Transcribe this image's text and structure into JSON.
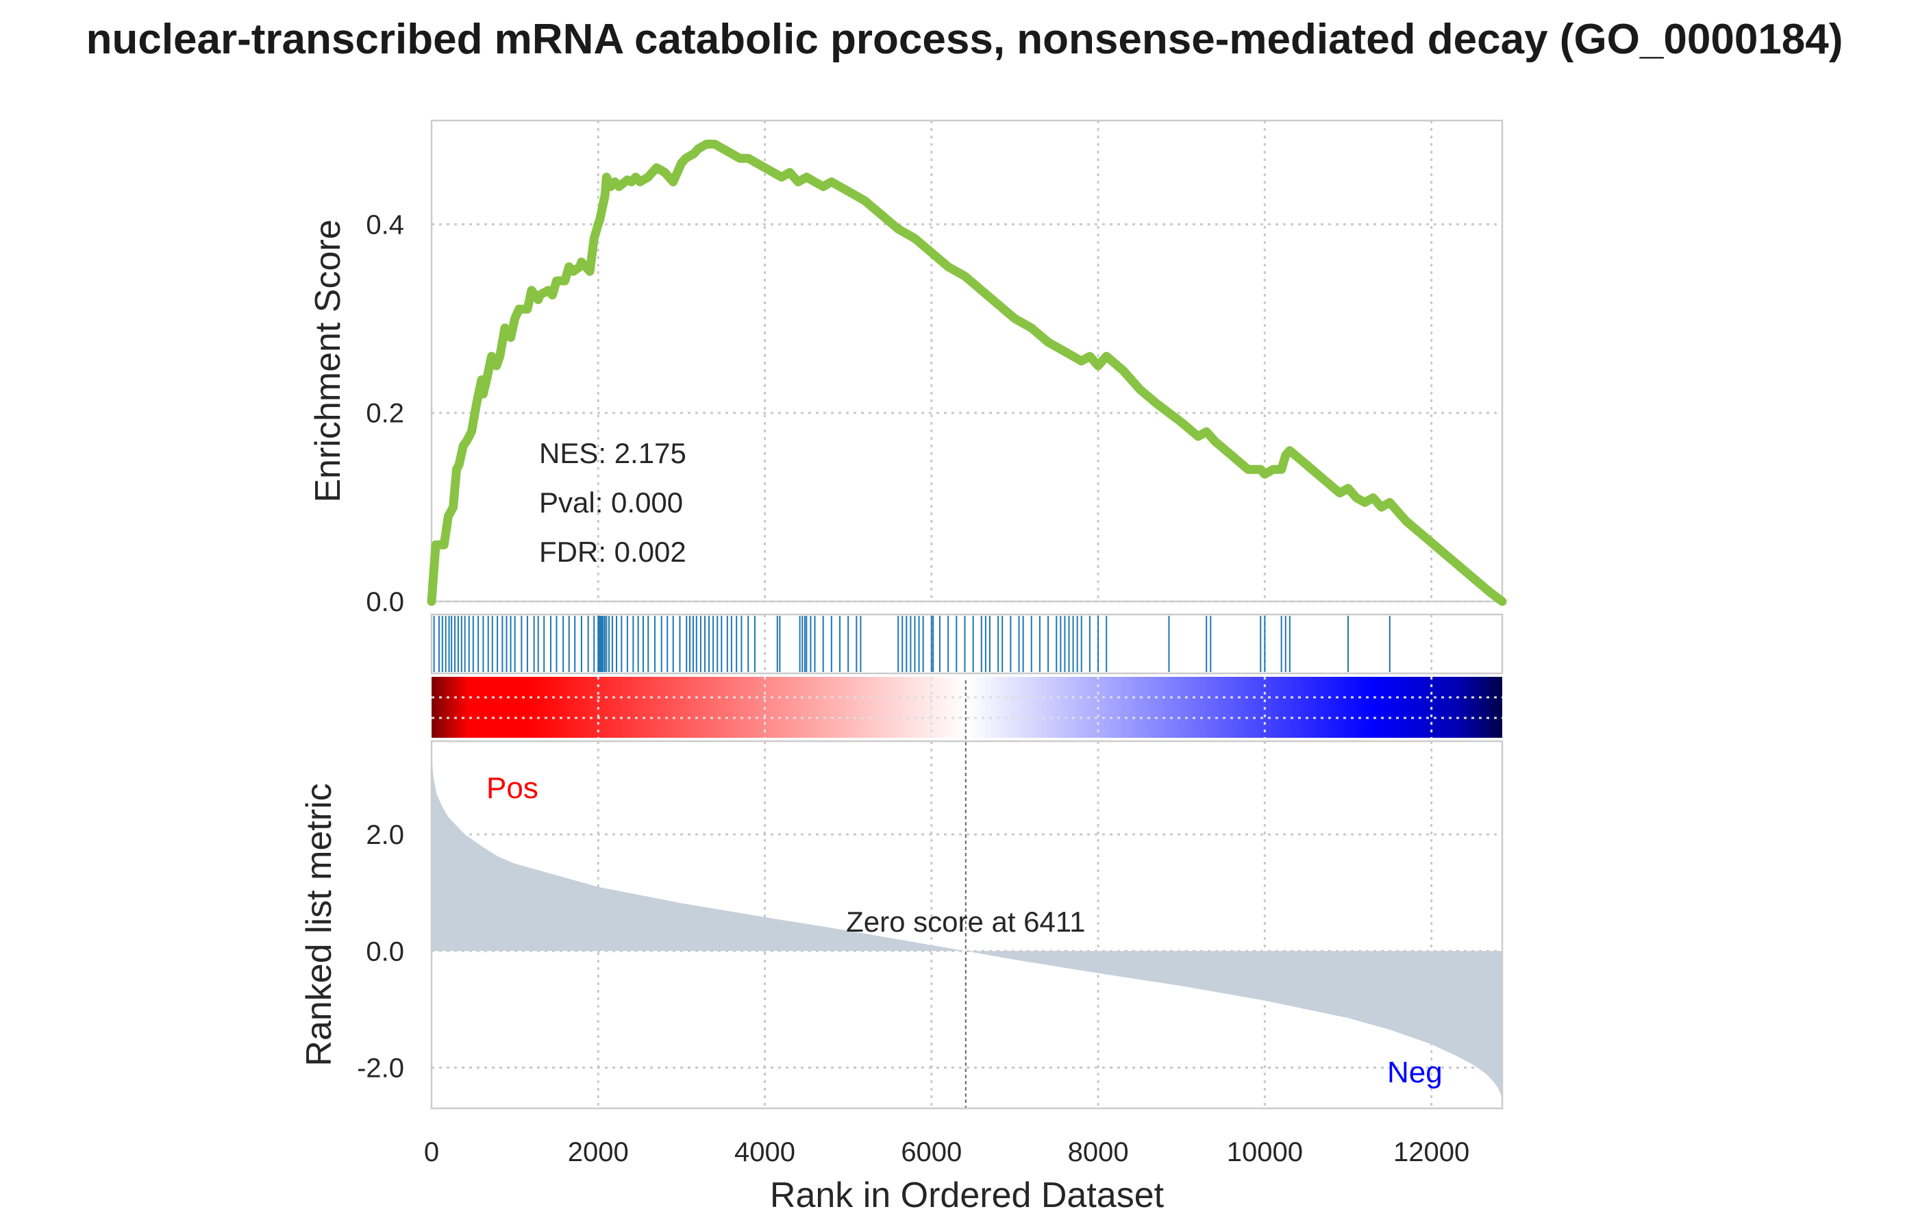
{
  "chart_data": {
    "type": "line",
    "title": "nuclear-transcribed mRNA catabolic process, nonsense-mediated decay (GO_0000184)",
    "xlabel": "Rank in Ordered Dataset",
    "xlim": [
      0,
      12850
    ],
    "x_ticks": [
      0,
      2000,
      4000,
      6000,
      8000,
      10000,
      12000
    ],
    "grid": true,
    "colors": {
      "es_line": "#88c344",
      "hits": "#1f77b4",
      "metric_fill": "#c6d0da",
      "pos": "#ff0000",
      "neg": "#0000ff"
    },
    "enrichment_panel": {
      "ylabel": "Enrichment Score",
      "ylim": [
        0,
        0.51
      ],
      "y_ticks": [
        "0.0",
        "0.2",
        "0.4"
      ],
      "y_tick_values": [
        0,
        0.2,
        0.4
      ],
      "stats": [
        "NES: 2.175",
        "Pval: 0.000",
        "FDR: 0.002"
      ],
      "series": [
        {
          "x": [
            0,
            50,
            150,
            200,
            260,
            300,
            330,
            380,
            420,
            480,
            540,
            600,
            620,
            660,
            720,
            780,
            820,
            880,
            950,
            1000,
            1050,
            1150,
            1200,
            1280,
            1300,
            1400,
            1450,
            1500,
            1600,
            1650,
            1700,
            1780,
            1800,
            1900,
            1950,
            2000,
            2020,
            2080,
            2100,
            2150,
            2200,
            2250,
            2350,
            2400,
            2450,
            2500,
            2600,
            2700,
            2800,
            2900,
            3000,
            3050,
            3150,
            3200,
            3300,
            3400,
            3500,
            3600,
            3700,
            3800,
            3900,
            4000,
            4100,
            4200,
            4300,
            4400,
            4500,
            4600,
            4700,
            4800,
            4900,
            5000,
            5200,
            5400,
            5600,
            5800,
            6000,
            6200,
            6400,
            6600,
            6800,
            7000,
            7200,
            7400,
            7600,
            7700,
            7800,
            7900,
            8000,
            8100,
            8300,
            8500,
            8700,
            8850,
            9000,
            9200,
            9300,
            9400,
            9600,
            9800,
            9950,
            10000,
            10100,
            10200,
            10250,
            10300,
            10500,
            10700,
            10900,
            11000,
            11100,
            11200,
            11300,
            11400,
            11500,
            11700,
            11900,
            12100,
            12300,
            12500,
            12700,
            12850
          ],
          "y": [
            0.0,
            0.06,
            0.06,
            0.09,
            0.1,
            0.14,
            0.145,
            0.165,
            0.17,
            0.18,
            0.21,
            0.235,
            0.22,
            0.235,
            0.26,
            0.25,
            0.26,
            0.29,
            0.28,
            0.3,
            0.31,
            0.31,
            0.33,
            0.32,
            0.325,
            0.33,
            0.325,
            0.34,
            0.34,
            0.355,
            0.35,
            0.355,
            0.36,
            0.35,
            0.385,
            0.4,
            0.405,
            0.43,
            0.45,
            0.44,
            0.445,
            0.44,
            0.447,
            0.445,
            0.45,
            0.445,
            0.45,
            0.46,
            0.455,
            0.445,
            0.465,
            0.47,
            0.475,
            0.48,
            0.485,
            0.485,
            0.48,
            0.475,
            0.47,
            0.47,
            0.465,
            0.46,
            0.455,
            0.45,
            0.455,
            0.445,
            0.45,
            0.445,
            0.44,
            0.445,
            0.44,
            0.435,
            0.425,
            0.41,
            0.395,
            0.385,
            0.37,
            0.355,
            0.345,
            0.33,
            0.315,
            0.3,
            0.29,
            0.275,
            0.265,
            0.26,
            0.255,
            0.26,
            0.25,
            0.26,
            0.245,
            0.225,
            0.21,
            0.2,
            0.19,
            0.175,
            0.18,
            0.17,
            0.155,
            0.14,
            0.14,
            0.135,
            0.14,
            0.14,
            0.155,
            0.16,
            0.145,
            0.13,
            0.115,
            0.12,
            0.11,
            0.105,
            0.11,
            0.1,
            0.105,
            0.085,
            0.07,
            0.055,
            0.04,
            0.025,
            0.01,
            0.0
          ]
        }
      ]
    },
    "hits": [
      30,
      90,
      130,
      170,
      210,
      240,
      280,
      320,
      360,
      400,
      450,
      500,
      560,
      620,
      680,
      730,
      790,
      850,
      900,
      950,
      1000,
      1080,
      1150,
      1230,
      1280,
      1350,
      1430,
      1500,
      1580,
      1650,
      1720,
      1800,
      1880,
      1950,
      2000,
      2010,
      2020,
      2030,
      2045,
      2060,
      2080,
      2100,
      2130,
      2170,
      2220,
      2280,
      2350,
      2420,
      2480,
      2540,
      2600,
      2680,
      2760,
      2830,
      2900,
      2980,
      3060,
      3100,
      3140,
      3180,
      3230,
      3280,
      3330,
      3380,
      3430,
      3480,
      3550,
      3600,
      3660,
      3720,
      3800,
      3880,
      4150,
      4180,
      4420,
      4450,
      4480,
      4500,
      4550,
      4600,
      4700,
      4800,
      4900,
      5000,
      5100,
      5150,
      5600,
      5650,
      5700,
      5750,
      5800,
      5850,
      5900,
      6000,
      6020,
      6100,
      6200,
      6300,
      6400,
      6500,
      6600,
      6650,
      6700,
      6800,
      6850,
      6950,
      7050,
      7100,
      7200,
      7300,
      7400,
      7500,
      7550,
      7600,
      7650,
      7700,
      7750,
      7800,
      7900,
      8000,
      8100,
      8850,
      9300,
      9350,
      9950,
      10000,
      10200,
      10250,
      10300,
      11000,
      11500
    ],
    "metric_panel": {
      "ylabel": "Ranked list metric",
      "ylim": [
        -2.7,
        3.6
      ],
      "y_ticks": [
        "-2.0",
        "0.0",
        "2.0"
      ],
      "y_tick_values": [
        -2,
        0,
        2
      ],
      "pos_label": "Pos",
      "neg_label": "Neg",
      "zero_label": "Zero score at 6411",
      "zero_at": 6411,
      "series": [
        {
          "x": [
            0,
            20,
            60,
            120,
            200,
            300,
            400,
            600,
            800,
            1000,
            1500,
            2000,
            3000,
            4000,
            5000,
            6000,
            6411,
            7000,
            8000,
            9000,
            10000,
            11000,
            11500,
            12000,
            12300,
            12500,
            12650,
            12750,
            12800,
            12830,
            12850
          ],
          "y": [
            3.4,
            3.0,
            2.7,
            2.5,
            2.3,
            2.15,
            2.0,
            1.8,
            1.62,
            1.5,
            1.3,
            1.1,
            0.82,
            0.58,
            0.35,
            0.1,
            0.0,
            -0.15,
            -0.38,
            -0.6,
            -0.85,
            -1.15,
            -1.35,
            -1.6,
            -1.8,
            -1.95,
            -2.1,
            -2.25,
            -2.35,
            -2.45,
            -2.5
          ]
        }
      ]
    },
    "axis_font_color": "#262626"
  }
}
